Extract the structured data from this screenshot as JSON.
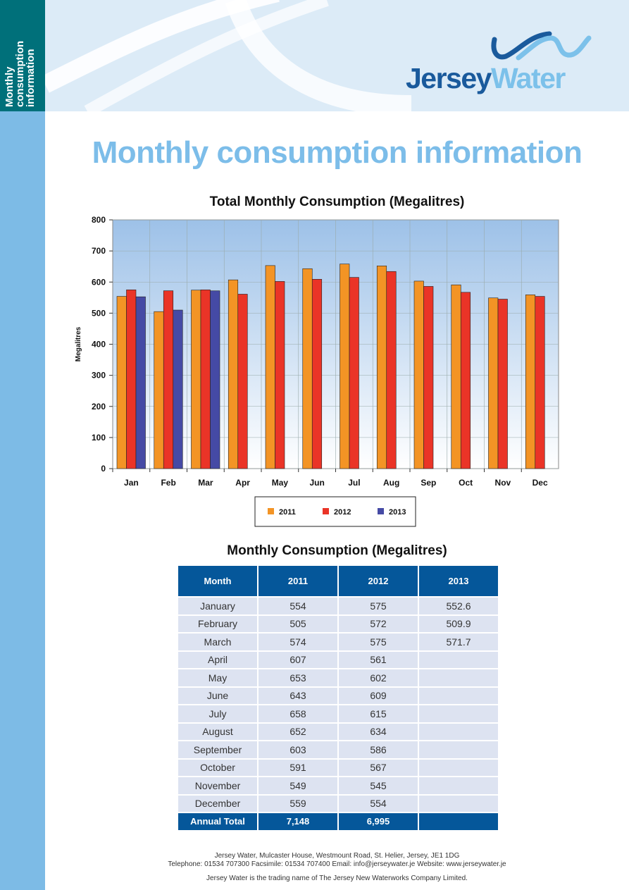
{
  "sidebar": {
    "label": "Monthly\nconsumption\ninformation"
  },
  "logo": {
    "part1": "Jersey",
    "part2": "Water"
  },
  "page_title": "Monthly consumption information",
  "chart_title": "Total Monthly Consumption (Megalitres)",
  "colors": {
    "s2011": "#f39425",
    "s2012": "#ea3427",
    "s2013": "#454aa5",
    "accent": "#7cbde9",
    "header_blue": "#05579a"
  },
  "chart_data": {
    "type": "bar",
    "title": "Total Monthly Consumption (Megalitres)",
    "xlabel": "",
    "ylabel": "Megalitres",
    "ylim": [
      0,
      800
    ],
    "yticks": [
      0,
      100,
      200,
      300,
      400,
      500,
      600,
      700,
      800
    ],
    "grid": true,
    "legend": "bottom",
    "categories": [
      "Jan",
      "Feb",
      "Mar",
      "Apr",
      "May",
      "Jun",
      "Jul",
      "Aug",
      "Sep",
      "Oct",
      "Nov",
      "Dec"
    ],
    "series": [
      {
        "name": "2011",
        "values": [
          554,
          505,
          574,
          607,
          653,
          643,
          658,
          652,
          603,
          591,
          549,
          559
        ]
      },
      {
        "name": "2012",
        "values": [
          575,
          572,
          575,
          561,
          602,
          609,
          615,
          634,
          586,
          567,
          545,
          554
        ]
      },
      {
        "name": "2013",
        "values": [
          552.6,
          509.9,
          571.7,
          null,
          null,
          null,
          null,
          null,
          null,
          null,
          null,
          null
        ]
      }
    ]
  },
  "table": {
    "title": "Monthly Consumption (Megalitres)",
    "headers": [
      "Month",
      "2011",
      "2012",
      "2013"
    ],
    "rows": [
      [
        "January",
        "554",
        "575",
        "552.6"
      ],
      [
        "February",
        "505",
        "572",
        "509.9"
      ],
      [
        "March",
        "574",
        "575",
        "571.7"
      ],
      [
        "April",
        "607",
        "561",
        ""
      ],
      [
        "May",
        "653",
        "602",
        ""
      ],
      [
        "June",
        "643",
        "609",
        ""
      ],
      [
        "July",
        "658",
        "615",
        ""
      ],
      [
        "August",
        "652",
        "634",
        ""
      ],
      [
        "September",
        "603",
        "586",
        ""
      ],
      [
        "October",
        "591",
        "567",
        ""
      ],
      [
        "November",
        "549",
        "545",
        ""
      ],
      [
        "December",
        "559",
        "554",
        ""
      ]
    ],
    "total": [
      "Annual Total",
      "7,148",
      "6,995",
      ""
    ]
  },
  "footer": {
    "address": "Jersey Water, Mulcaster House, Westmount Road, St. Helier, Jersey, JE1 1DG",
    "contact": "Telephone: 01534 707300  Facsimile: 01534 707400  Email: info@jerseywater.je  Website: www.jerseywater.je",
    "legal": "Jersey Water is the trading name of The Jersey New Waterworks Company Limited."
  }
}
